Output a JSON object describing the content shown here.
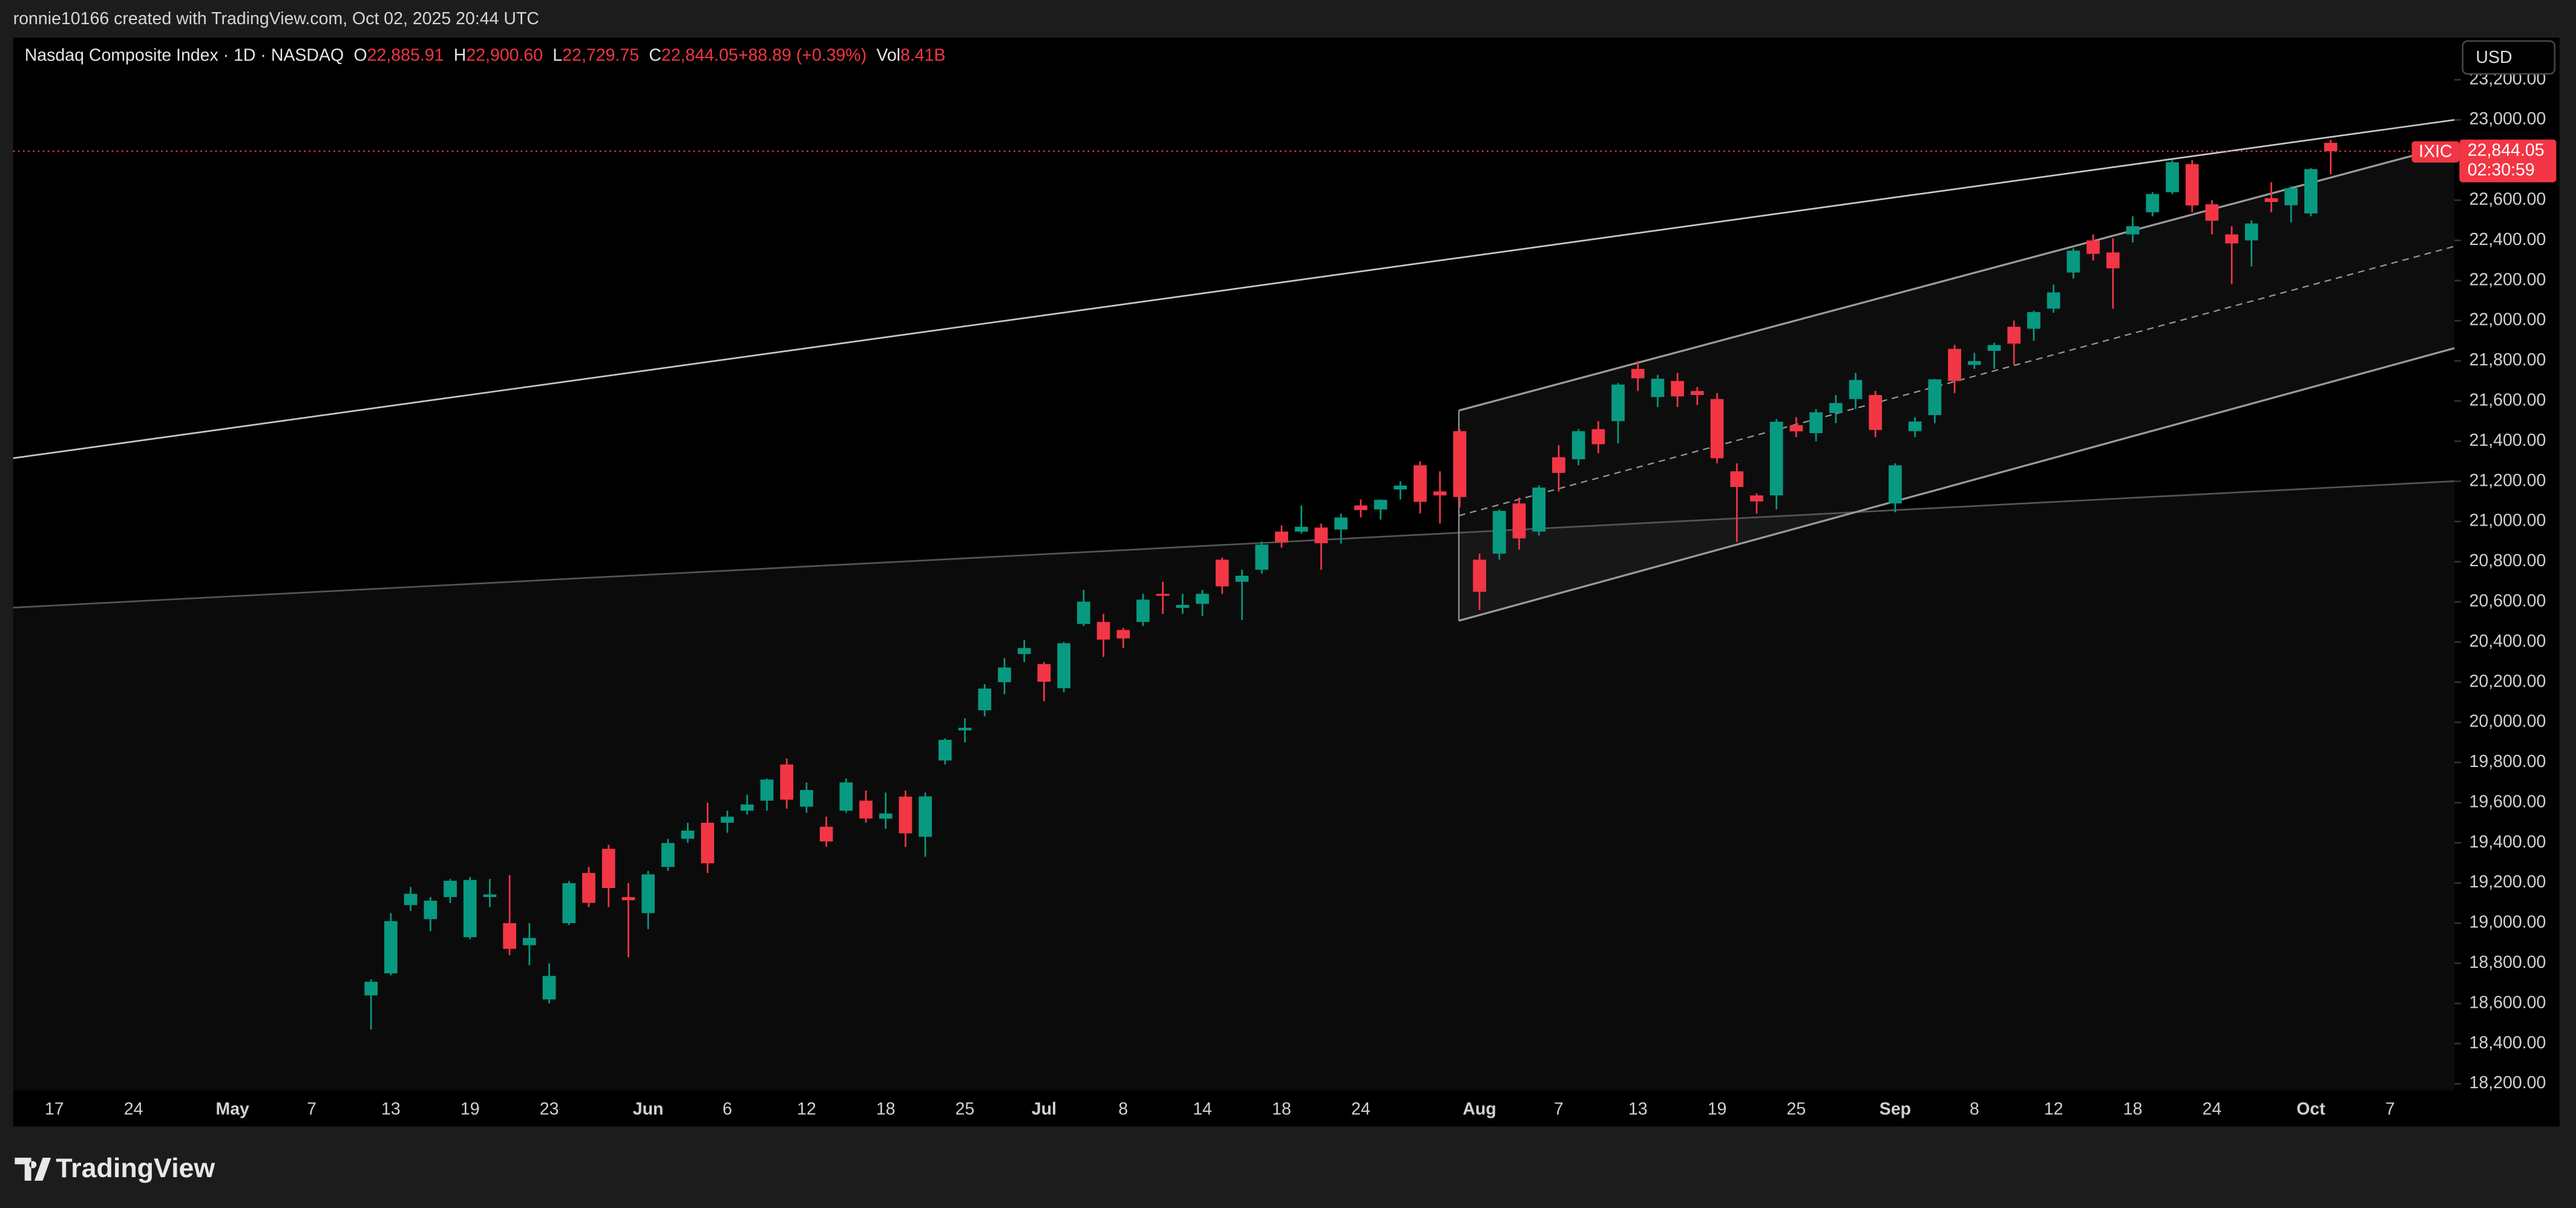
{
  "header": {
    "text": "ronnie10166 created with TradingView.com, Oct 02, 2025 20:44 UTC"
  },
  "footer": {
    "brand": "TradingView"
  },
  "currency_button": "USD",
  "price_tag": {
    "symbol": "IXIC",
    "price": "22,844.05",
    "countdown": "02:30:59"
  },
  "chart_data": {
    "type": "candlestick",
    "legend": {
      "symbol": "Nasdaq Composite Index · 1D · NASDAQ",
      "o": "O",
      "open": "22,885.91",
      "h": "H",
      "high": "22,900.60",
      "l": "L",
      "low": "22,729.75",
      "c": "C",
      "close": "22,844.05",
      "change": "+88.89 (+0.39%)",
      "vol": "Vol",
      "volume": "8.41B"
    },
    "up_color": "#089981",
    "down_color": "#f23645",
    "categories": [
      null,
      "17",
      null,
      null,
      null,
      "24",
      null,
      null,
      null,
      null,
      "May",
      null,
      null,
      null,
      "7",
      null,
      null,
      null,
      "13",
      null,
      null,
      null,
      "19",
      null,
      null,
      null,
      "23",
      null,
      null,
      null,
      null,
      "Jun",
      null,
      null,
      null,
      "6",
      null,
      null,
      null,
      "12",
      null,
      null,
      null,
      "18",
      null,
      null,
      null,
      "25",
      null,
      null,
      null,
      "Jul",
      null,
      null,
      null,
      "8",
      null,
      null,
      null,
      "14",
      null,
      null,
      null,
      "18",
      null,
      null,
      null,
      "24",
      null,
      null,
      null,
      null,
      null,
      "Aug",
      null,
      null,
      null,
      "7",
      null,
      null,
      null,
      "13",
      null,
      null,
      null,
      "19",
      null,
      null,
      null,
      "25",
      null,
      null,
      null,
      null,
      "Sep",
      null,
      null,
      null,
      "8",
      null,
      null,
      null,
      "12",
      null,
      null,
      null,
      "18",
      null,
      null,
      null,
      "24",
      null,
      null,
      null,
      null,
      "Oct",
      null,
      null,
      null,
      "7",
      null,
      null,
      null
    ],
    "open": [
      null,
      null,
      null,
      null,
      null,
      null,
      null,
      null,
      null,
      null,
      null,
      null,
      null,
      null,
      null,
      null,
      null,
      18640,
      18750,
      19090,
      19020,
      19130,
      18930,
      19130,
      19000,
      18890,
      18620,
      19000,
      19250,
      19370,
      19130,
      19050,
      19280,
      19420,
      19500,
      19500,
      19560,
      19610,
      19790,
      19580,
      19480,
      19560,
      19610,
      19520,
      19630,
      19430,
      19810,
      19960,
      20060,
      20200,
      20340,
      20290,
      20170,
      20490,
      20500,
      20460,
      20500,
      20640,
      20570,
      20590,
      20810,
      20700,
      20760,
      20950,
      20950,
      20970,
      20960,
      21080,
      21060,
      21160,
      21280,
      21150,
      21450,
      20810,
      20840,
      21090,
      20950,
      21320,
      21310,
      21460,
      21500,
      21760,
      21620,
      21700,
      21650,
      21610,
      21250,
      21130,
      21130,
      21480,
      21440,
      21540,
      21610,
      21630,
      21090,
      21450,
      21530,
      21860,
      21780,
      21850,
      21970,
      21960,
      22060,
      22240,
      22400,
      22340,
      22430,
      22540,
      22640,
      22780,
      22580,
      22430,
      22400,
      22610,
      22575,
      22534,
      22885.91,
      null,
      null,
      null,
      null,
      null,
      null
    ],
    "high": [
      null,
      null,
      null,
      null,
      null,
      null,
      null,
      null,
      null,
      null,
      null,
      null,
      null,
      null,
      null,
      null,
      null,
      18720,
      19050,
      19180,
      19130,
      19220,
      19230,
      19220,
      19239,
      19000,
      18800,
      19210,
      19280,
      19390,
      19200,
      19260,
      19420,
      19500,
      19600,
      19560,
      19640,
      19720,
      19820,
      19700,
      19530,
      19720,
      19660,
      19650,
      19660,
      19650,
      19920,
      20020,
      20190,
      20320,
      20410,
      20300,
      20400,
      20660,
      20540,
      20470,
      20640,
      20700,
      20640,
      20660,
      20820,
      20760,
      20900,
      20980,
      21080,
      20990,
      21040,
      21110,
      21110,
      21200,
      21300,
      21250,
      21460,
      20840,
      21060,
      21120,
      21180,
      21380,
      21460,
      21500,
      21690,
      21800,
      21730,
      21740,
      21670,
      21640,
      21290,
      21140,
      21510,
      21520,
      21560,
      21630,
      21740,
      21650,
      21290,
      21520,
      21710,
      21880,
      21840,
      21890,
      22000,
      22050,
      22180,
      22360,
      22430,
      22410,
      22520,
      22640,
      22800,
      22800,
      22600,
      22470,
      22500,
      22690,
      22670,
      22760,
      22900.6,
      null,
      null,
      null,
      null,
      null,
      null
    ],
    "low": [
      null,
      null,
      null,
      null,
      null,
      null,
      null,
      null,
      null,
      null,
      null,
      null,
      null,
      null,
      null,
      null,
      null,
      18470,
      18740,
      19060,
      18960,
      19100,
      18920,
      19080,
      18840,
      18790,
      18600,
      18990,
      19080,
      19080,
      18830,
      18970,
      19260,
      19400,
      19250,
      19450,
      19540,
      19560,
      19570,
      19550,
      19380,
      19550,
      19500,
      19470,
      19380,
      19330,
      19790,
      19900,
      20030,
      20140,
      20300,
      20105,
      20150,
      20480,
      20326,
      20370,
      20480,
      20540,
      20540,
      20530,
      20640,
      20510,
      20740,
      20870,
      20940,
      20760,
      20890,
      21020,
      21010,
      21110,
      21040,
      20990,
      21070,
      20560,
      20810,
      20860,
      20930,
      21150,
      21280,
      21340,
      21389,
      21650,
      21570,
      21570,
      21580,
      21290,
      20898,
      21040,
      21060,
      21420,
      21400,
      21490,
      21560,
      21420,
      21046,
      21420,
      21490,
      21640,
      21760,
      21760,
      21782,
      21900,
      22040,
      22210,
      22300,
      22060,
      22390,
      22520,
      22630,
      22540,
      22430,
      22182,
      22270,
      22540,
      22490,
      22520,
      22729.75,
      null,
      null,
      null,
      null,
      null,
      null
    ],
    "close": [
      null,
      null,
      null,
      null,
      null,
      null,
      null,
      null,
      null,
      null,
      null,
      null,
      null,
      null,
      null,
      null,
      null,
      18708,
      19010,
      19146,
      19112,
      19211,
      19215,
      19143,
      18872,
      18926,
      18737,
      19199,
      19101,
      19175,
      19114,
      19243,
      19399,
      19461,
      19298,
      19530,
      19591,
      19715,
      19615,
      19663,
      19407,
      19701,
      19521,
      19546,
      19447,
      19631,
      19913,
      19973,
      20168,
      20273,
      20370,
      20202,
      20394,
      20601,
      20412,
      20418,
      20611,
      20630,
      20585,
      20640,
      20677,
      20730,
      20885,
      20896,
      20974,
      20892,
      21020,
      21057,
      21108,
      21179,
      21098,
      21130,
      21122,
      20650,
      21053,
      20916,
      21169,
      21242,
      21450,
      21385,
      21682,
      21713,
      21711,
      21623,
      21630,
      21315,
      21172,
      21100,
      21497,
      21449,
      21544,
      21590,
      21705,
      21456,
      21280,
      21498,
      21708,
      21700,
      21799,
      21879,
      21886,
      22043,
      22141,
      22349,
      22333,
      22261,
      22471,
      22631,
      22789,
      22574,
      22498,
      22385,
      22484,
      22591,
      22660,
      22755,
      22844.05,
      null,
      null,
      null,
      null,
      null,
      null
    ],
    "ylim": [
      18167,
      23409
    ],
    "yticks": [
      {
        "value": 18200,
        "label": "18,200.00"
      },
      {
        "value": 18400,
        "label": "18,400.00"
      },
      {
        "value": 18600,
        "label": "18,600.00"
      },
      {
        "value": 18800,
        "label": "18,800.00"
      },
      {
        "value": 19000,
        "label": "19,000.00"
      },
      {
        "value": 19200,
        "label": "19,200.00"
      },
      {
        "value": 19400,
        "label": "19,400.00"
      },
      {
        "value": 19600,
        "label": "19,600.00"
      },
      {
        "value": 19800,
        "label": "19,800.00"
      },
      {
        "value": 20000,
        "label": "20,000.00"
      },
      {
        "value": 20200,
        "label": "20,200.00"
      },
      {
        "value": 20400,
        "label": "20,400.00"
      },
      {
        "value": 20600,
        "label": "20,600.00"
      },
      {
        "value": 20800,
        "label": "20,800.00"
      },
      {
        "value": 21000,
        "label": "21,000.00"
      },
      {
        "value": 21200,
        "label": "21,200.00"
      },
      {
        "value": 21400,
        "label": "21,400.00"
      },
      {
        "value": 21600,
        "label": "21,600.00"
      },
      {
        "value": 21800,
        "label": "21,800.00"
      },
      {
        "value": 22000,
        "label": "22,000.00"
      },
      {
        "value": 22200,
        "label": "22,200.00"
      },
      {
        "value": 22400,
        "label": "22,400.00"
      },
      {
        "value": 22600,
        "label": "22,600.00"
      },
      {
        "value": 22800,
        "label": "22,800.00"
      },
      {
        "value": 23000,
        "label": "23,000.00"
      },
      {
        "value": 23200,
        "label": "23,200.00"
      }
    ],
    "grid": false
  }
}
